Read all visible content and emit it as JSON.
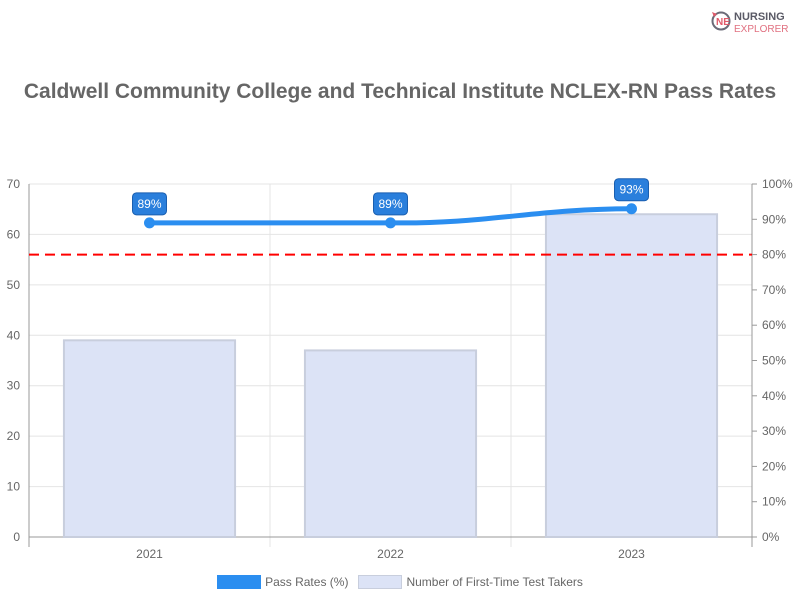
{
  "logo": {
    "line1": "NURSING",
    "line2": "EXPLORER"
  },
  "chart_data": {
    "type": "bar",
    "title": "Caldwell Community College and Technical Institute NCLEX-RN Pass Rates",
    "categories": [
      "2021",
      "2022",
      "2023"
    ],
    "series": [
      {
        "name": "Pass Rates (%)",
        "type": "line",
        "axis": "right",
        "values": [
          89,
          89,
          93
        ],
        "labels": [
          "89%",
          "89%",
          "93%"
        ],
        "color": "#2b8ef0"
      },
      {
        "name": "Number of First-Time Test Takers",
        "type": "bar",
        "axis": "left",
        "values": [
          39,
          37,
          64
        ],
        "color": "#dce3f6"
      }
    ],
    "reference_line": {
      "axis": "right",
      "value": 80,
      "color": "#ff0000",
      "style": "dashed"
    },
    "ylim_left": [
      0,
      70
    ],
    "yticks_left": [
      "0",
      "10",
      "20",
      "30",
      "40",
      "50",
      "60",
      "70"
    ],
    "ylim_right": [
      0,
      100
    ],
    "yticks_right": [
      "0%",
      "10%",
      "20%",
      "30%",
      "40%",
      "50%",
      "60%",
      "70%",
      "80%",
      "90%",
      "100%"
    ],
    "grid": true,
    "legend": "bottom"
  }
}
